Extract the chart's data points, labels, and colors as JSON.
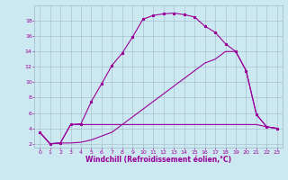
{
  "xlabel": "Windchill (Refroidissement éolien,°C)",
  "background_color": "#cce8f0",
  "grid_color": "#a0b8c8",
  "line_color": "#990099",
  "xlim": [
    -0.5,
    23.5
  ],
  "ylim": [
    1.5,
    20.0
  ],
  "xticks": [
    0,
    1,
    2,
    3,
    4,
    5,
    6,
    7,
    8,
    9,
    10,
    11,
    12,
    13,
    14,
    15,
    16,
    17,
    18,
    19,
    20,
    21,
    22,
    23
  ],
  "yticks": [
    2,
    4,
    6,
    8,
    10,
    12,
    14,
    16,
    18
  ],
  "curve1_x": [
    0,
    1,
    2,
    3,
    4,
    5,
    6,
    7,
    8,
    9,
    10,
    11,
    12,
    13,
    14,
    15,
    16,
    17,
    18,
    19,
    20,
    21,
    22,
    23
  ],
  "curve1_y": [
    3.5,
    2.0,
    2.1,
    4.5,
    4.6,
    7.5,
    9.8,
    12.2,
    13.8,
    15.9,
    18.2,
    18.7,
    18.9,
    19.0,
    18.8,
    18.5,
    17.3,
    16.5,
    15.0,
    14.0,
    11.5,
    5.8,
    4.2,
    4.0
  ],
  "curve2_x": [
    0,
    1,
    2,
    3,
    4,
    5,
    6,
    7,
    8,
    9,
    10,
    11,
    12,
    13,
    14,
    15,
    16,
    17,
    18,
    19,
    20,
    21,
    22,
    23
  ],
  "curve2_y": [
    3.5,
    2.0,
    2.1,
    4.5,
    4.5,
    4.5,
    4.5,
    4.5,
    4.5,
    4.5,
    4.5,
    4.5,
    4.5,
    4.5,
    4.5,
    4.5,
    4.5,
    4.5,
    4.5,
    4.5,
    4.5,
    4.5,
    4.2,
    4.0
  ],
  "curve3_x": [
    0,
    1,
    2,
    3,
    4,
    5,
    6,
    7,
    8,
    9,
    10,
    11,
    12,
    13,
    14,
    15,
    16,
    17,
    18,
    19,
    20,
    21,
    22,
    23
  ],
  "curve3_y": [
    3.5,
    2.0,
    2.1,
    2.1,
    2.2,
    2.5,
    3.0,
    3.5,
    4.5,
    5.5,
    6.5,
    7.5,
    8.5,
    9.5,
    10.5,
    11.5,
    12.5,
    13.0,
    14.0,
    14.0,
    11.5,
    5.8,
    4.2,
    4.0
  ],
  "xlabel_fontsize": 5.5,
  "tick_fontsize": 4.5,
  "marker_size": 2.0,
  "line_width": 0.8
}
